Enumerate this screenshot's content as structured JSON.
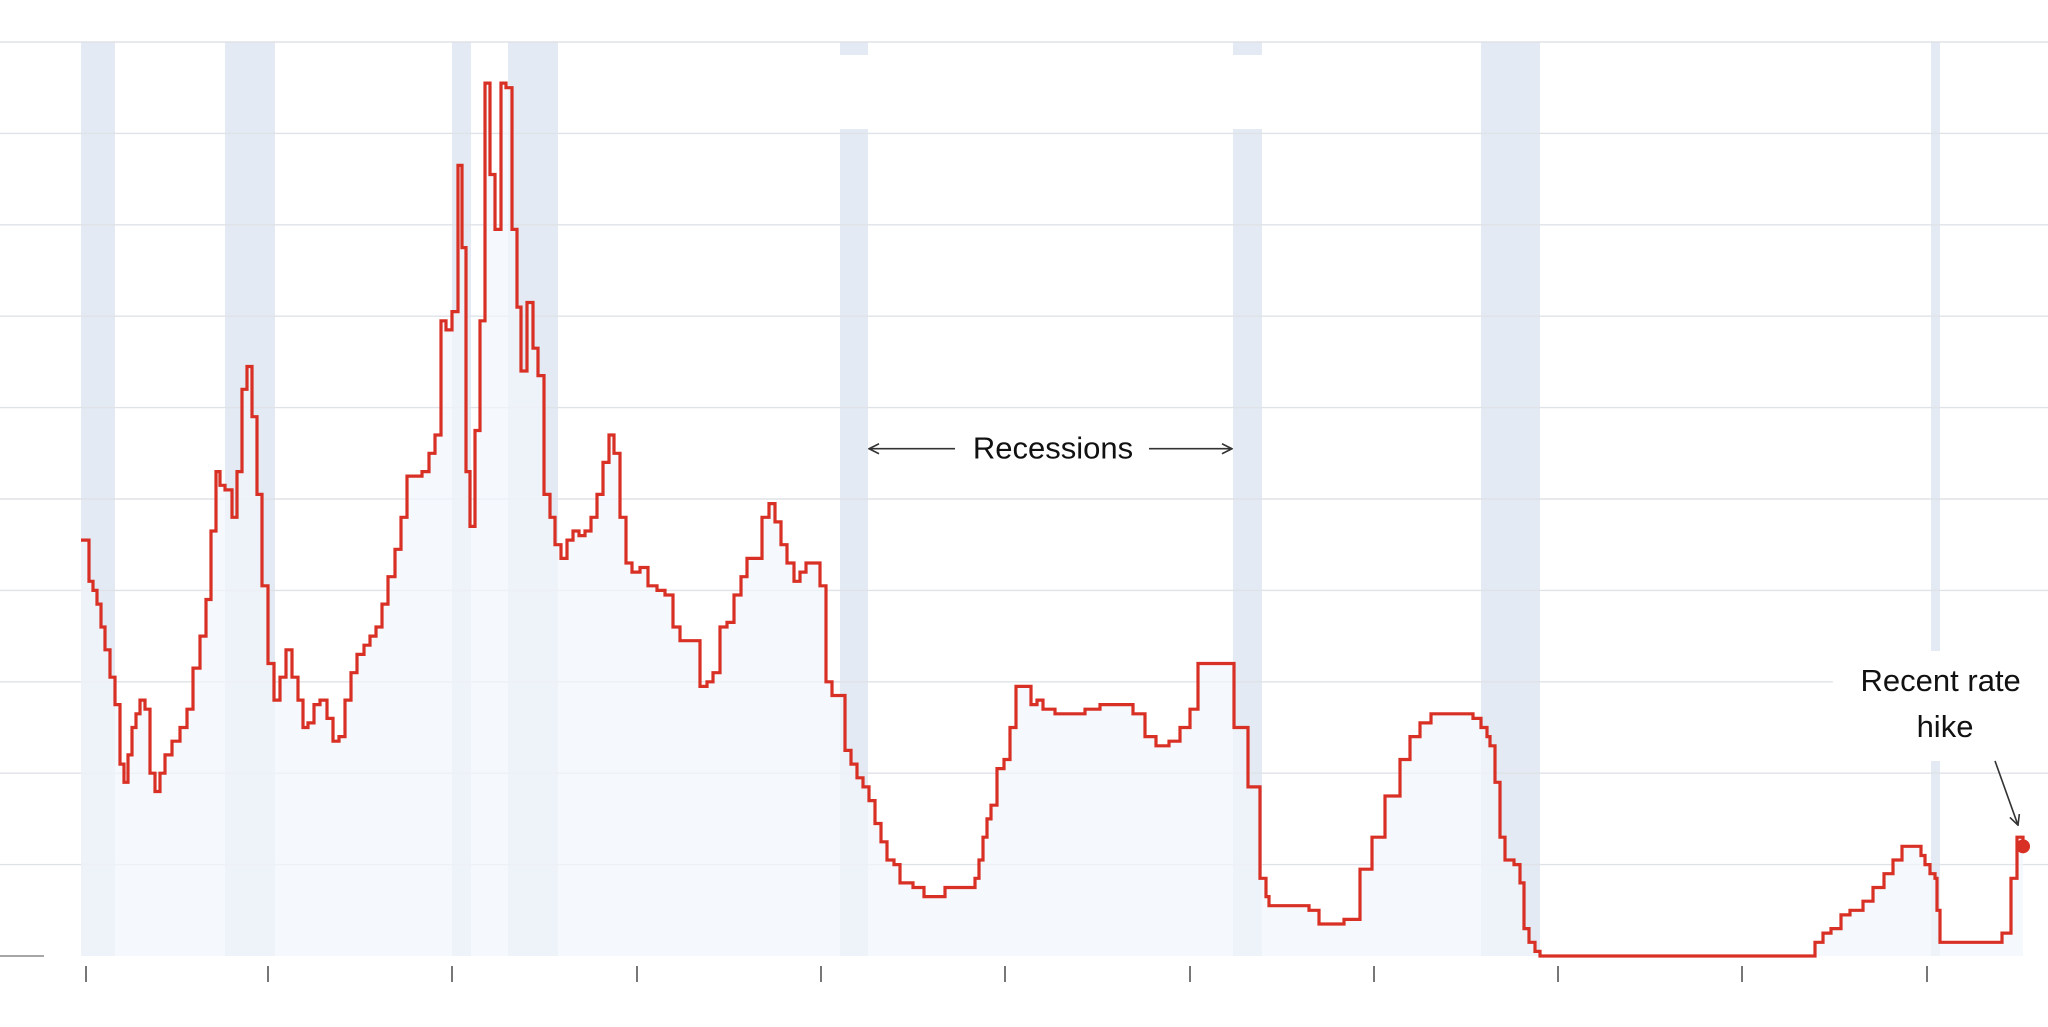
{
  "chart_data": {
    "type": "line",
    "step": true,
    "title": "",
    "xlabel": "",
    "ylabel": "",
    "xlim": [
      0,
      2048
    ],
    "ylim": [
      0,
      20
    ],
    "grid": true,
    "x_ticks": [
      86,
      268,
      452,
      637,
      821,
      1005,
      1190,
      1374,
      1558,
      1742,
      1927
    ],
    "colors": {
      "line": "#d93025",
      "area": "#f1f5fb",
      "recession_band": "#e3eaf3",
      "gridline": "#dfe2e7",
      "annotation": "#111111"
    },
    "recessions": [
      [
        81,
        115
      ],
      [
        225,
        275
      ],
      [
        452,
        471
      ],
      [
        508,
        558
      ],
      [
        840,
        868
      ],
      [
        1233,
        1262
      ],
      [
        1481,
        1540
      ],
      [
        1931,
        1940
      ]
    ],
    "series": [
      {
        "points": [
          [
            81,
            9.1
          ],
          [
            89,
            8.2
          ],
          [
            93,
            8.0
          ],
          [
            97,
            7.7
          ],
          [
            101,
            7.2
          ],
          [
            105,
            6.7
          ],
          [
            110,
            6.1
          ],
          [
            115,
            5.5
          ],
          [
            120,
            4.2
          ],
          [
            124,
            3.8
          ],
          [
            128,
            4.4
          ],
          [
            132,
            5.0
          ],
          [
            136,
            5.3
          ],
          [
            140,
            5.6
          ],
          [
            145,
            5.4
          ],
          [
            150,
            4.0
          ],
          [
            155,
            3.6
          ],
          [
            160,
            4.0
          ],
          [
            165,
            4.4
          ],
          [
            172,
            4.7
          ],
          [
            180,
            5.0
          ],
          [
            187,
            5.4
          ],
          [
            193,
            6.3
          ],
          [
            200,
            7.0
          ],
          [
            206,
            7.8
          ],
          [
            211,
            9.3
          ],
          [
            216,
            10.6
          ],
          [
            220,
            10.3
          ],
          [
            225,
            10.2
          ],
          [
            232,
            9.6
          ],
          [
            237,
            10.6
          ],
          [
            242,
            12.4
          ],
          [
            247,
            12.9
          ],
          [
            252,
            11.8
          ],
          [
            257,
            10.1
          ],
          [
            262,
            8.1
          ],
          [
            268,
            6.4
          ],
          [
            274,
            5.6
          ],
          [
            280,
            6.1
          ],
          [
            286,
            6.7
          ],
          [
            292,
            6.1
          ],
          [
            298,
            5.6
          ],
          [
            303,
            5.0
          ],
          [
            308,
            5.1
          ],
          [
            314,
            5.5
          ],
          [
            320,
            5.6
          ],
          [
            327,
            5.2
          ],
          [
            333,
            4.7
          ],
          [
            339,
            4.8
          ],
          [
            345,
            5.6
          ],
          [
            351,
            6.2
          ],
          [
            357,
            6.6
          ],
          [
            364,
            6.8
          ],
          [
            370,
            7.0
          ],
          [
            376,
            7.2
          ],
          [
            382,
            7.7
          ],
          [
            388,
            8.3
          ],
          [
            395,
            8.9
          ],
          [
            401,
            9.6
          ],
          [
            407,
            10.5
          ],
          [
            413,
            10.5
          ],
          [
            422,
            10.6
          ],
          [
            429,
            11.0
          ],
          [
            435,
            11.4
          ],
          [
            441,
            13.9
          ],
          [
            446,
            13.7
          ],
          [
            452,
            14.1
          ],
          [
            458,
            17.3
          ],
          [
            462,
            15.5
          ],
          [
            466,
            10.6
          ],
          [
            470,
            9.4
          ],
          [
            475,
            11.5
          ],
          [
            480,
            13.9
          ],
          [
            485,
            19.1
          ],
          [
            490,
            17.1
          ],
          [
            495,
            15.9
          ],
          [
            501,
            19.1
          ],
          [
            506,
            19.0
          ],
          [
            512,
            15.9
          ],
          [
            517,
            14.2
          ],
          [
            521,
            12.8
          ],
          [
            527,
            14.3
          ],
          [
            533,
            13.3
          ],
          [
            538,
            12.7
          ],
          [
            544,
            10.1
          ],
          [
            550,
            9.6
          ],
          [
            555,
            9.0
          ],
          [
            561,
            8.7
          ],
          [
            567,
            9.1
          ],
          [
            573,
            9.3
          ],
          [
            579,
            9.2
          ],
          [
            585,
            9.3
          ],
          [
            591,
            9.6
          ],
          [
            597,
            10.1
          ],
          [
            603,
            10.8
          ],
          [
            609,
            11.4
          ],
          [
            614,
            11.0
          ],
          [
            620,
            9.6
          ],
          [
            626,
            8.6
          ],
          [
            632,
            8.4
          ],
          [
            640,
            8.5
          ],
          [
            648,
            8.1
          ],
          [
            657,
            8.0
          ],
          [
            665,
            7.9
          ],
          [
            673,
            7.2
          ],
          [
            680,
            6.9
          ],
          [
            687,
            6.9
          ],
          [
            693,
            6.9
          ],
          [
            700,
            5.9
          ],
          [
            707,
            6.0
          ],
          [
            713,
            6.2
          ],
          [
            720,
            7.2
          ],
          [
            727,
            7.3
          ],
          [
            734,
            7.9
          ],
          [
            741,
            8.3
          ],
          [
            747,
            8.7
          ],
          [
            753,
            8.7
          ],
          [
            762,
            9.6
          ],
          [
            769,
            9.9
          ],
          [
            775,
            9.5
          ],
          [
            781,
            9.0
          ],
          [
            787,
            8.6
          ],
          [
            794,
            8.2
          ],
          [
            800,
            8.4
          ],
          [
            806,
            8.6
          ],
          [
            813,
            8.6
          ],
          [
            820,
            8.1
          ],
          [
            826,
            6.0
          ],
          [
            832,
            5.7
          ],
          [
            838,
            5.7
          ],
          [
            845,
            4.5
          ],
          [
            851,
            4.2
          ],
          [
            857,
            3.9
          ],
          [
            863,
            3.7
          ],
          [
            869,
            3.4
          ],
          [
            875,
            2.9
          ],
          [
            881,
            2.5
          ],
          [
            887,
            2.1
          ],
          [
            894,
            2.0
          ],
          [
            900,
            1.6
          ],
          [
            907,
            1.6
          ],
          [
            913,
            1.5
          ],
          [
            924,
            1.3
          ],
          [
            933,
            1.3
          ],
          [
            945,
            1.5
          ],
          [
            971,
            1.5
          ],
          [
            975,
            1.7
          ],
          [
            979,
            2.1
          ],
          [
            983,
            2.6
          ],
          [
            987,
            3.0
          ],
          [
            991,
            3.3
          ],
          [
            997,
            4.1
          ],
          [
            1004,
            4.3
          ],
          [
            1010,
            5.0
          ],
          [
            1016,
            5.9
          ],
          [
            1025,
            5.9
          ],
          [
            1031,
            5.5
          ],
          [
            1037,
            5.6
          ],
          [
            1043,
            5.4
          ],
          [
            1055,
            5.3
          ],
          [
            1085,
            5.4
          ],
          [
            1100,
            5.5
          ],
          [
            1133,
            5.3
          ],
          [
            1145,
            4.8
          ],
          [
            1156,
            4.6
          ],
          [
            1169,
            4.7
          ],
          [
            1180,
            5.0
          ],
          [
            1190,
            5.4
          ],
          [
            1198,
            6.4
          ],
          [
            1224,
            6.4
          ],
          [
            1234,
            5.0
          ],
          [
            1248,
            3.7
          ],
          [
            1260,
            1.7
          ],
          [
            1266,
            1.3
          ],
          [
            1269,
            1.1
          ],
          [
            1275,
            1.1
          ],
          [
            1281,
            1.1
          ],
          [
            1296,
            1.1
          ],
          [
            1309,
            1.0
          ],
          [
            1319,
            0.7
          ],
          [
            1325,
            0.7
          ],
          [
            1337,
            0.7
          ],
          [
            1344,
            0.8
          ],
          [
            1360,
            1.9
          ],
          [
            1372,
            2.6
          ],
          [
            1385,
            3.5
          ],
          [
            1400,
            4.3
          ],
          [
            1410,
            4.8
          ],
          [
            1420,
            5.1
          ],
          [
            1431,
            5.3
          ],
          [
            1441,
            5.3
          ],
          [
            1461,
            5.3
          ],
          [
            1473,
            5.2
          ],
          [
            1481,
            5.0
          ],
          [
            1487,
            4.8
          ],
          [
            1490,
            4.6
          ],
          [
            1495,
            3.8
          ],
          [
            1500,
            2.6
          ],
          [
            1505,
            2.1
          ],
          [
            1514,
            2.0
          ],
          [
            1520,
            1.6
          ],
          [
            1524,
            0.6
          ],
          [
            1529,
            0.3
          ],
          [
            1535,
            0.1
          ],
          [
            1540,
            0.0
          ],
          [
            1605,
            0.0
          ],
          [
            1717,
            0.0
          ],
          [
            1782,
            0.0
          ],
          [
            1815,
            0.3
          ],
          [
            1823,
            0.5
          ],
          [
            1831,
            0.6
          ],
          [
            1841,
            0.9
          ],
          [
            1850,
            1.0
          ],
          [
            1863,
            1.2
          ],
          [
            1873,
            1.5
          ],
          [
            1884,
            1.8
          ],
          [
            1893,
            2.1
          ],
          [
            1902,
            2.4
          ],
          [
            1914,
            2.4
          ],
          [
            1921,
            2.2
          ],
          [
            1925,
            2.0
          ],
          [
            1930,
            1.8
          ],
          [
            1935,
            1.7
          ],
          [
            1937,
            1.0
          ],
          [
            1940,
            0.3
          ],
          [
            1950,
            0.3
          ],
          [
            1975,
            0.3
          ],
          [
            1996,
            0.3
          ],
          [
            2002,
            0.5
          ],
          [
            2011,
            1.7
          ],
          [
            2017,
            2.6
          ],
          [
            2023,
            2.4
          ]
        ]
      }
    ],
    "annotations": [
      {
        "text": "Recessions",
        "at": [
          1053,
          11.1
        ],
        "arrow_left_to": [
          868,
          11.1
        ],
        "arrow_right_to": [
          1233,
          11.1
        ]
      },
      {
        "text_lines": [
          "Recent rate",
          "hike"
        ],
        "at": [
          1945,
          5.8
        ],
        "arrow_to": [
          2023,
          2.6
        ]
      }
    ]
  }
}
